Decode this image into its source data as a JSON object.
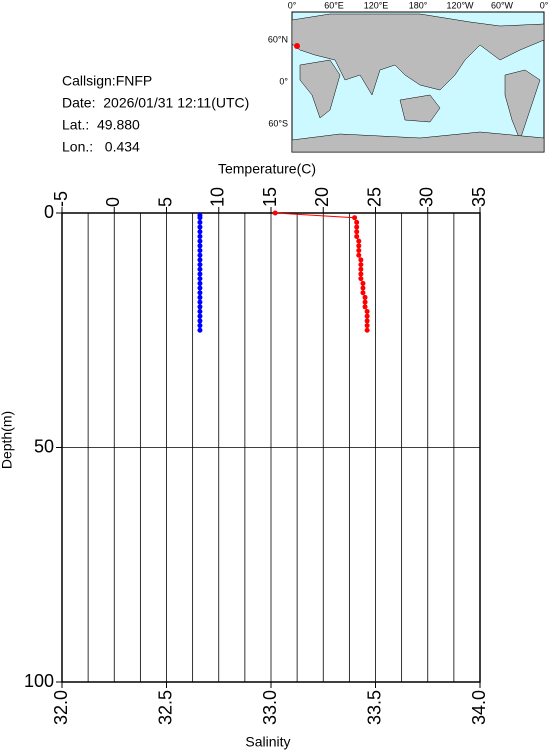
{
  "chart_data": {
    "type": "profile",
    "annotations": [
      "Callsign:FNFP",
      "Date:  2026/01/31 12:11(UTC)",
      "Lat.:  49.880",
      "Lon.:   0.434"
    ],
    "xlabel": "Salinity",
    "x2label": "Temperature(C)",
    "ylabel": "Depth(m)",
    "xlim": [
      32.0,
      34.0
    ],
    "xticks": [
      {
        "value": 32.0,
        "label": "32.0"
      },
      {
        "value": 32.5,
        "label": "32.5"
      },
      {
        "value": 33.0,
        "label": "33.0"
      },
      {
        "value": 33.5,
        "label": "33.5"
      },
      {
        "value": 34.0,
        "label": "34.0"
      }
    ],
    "x2lim": [
      -5,
      35
    ],
    "x2ticks": [
      -5,
      0,
      5,
      10,
      15,
      20,
      25,
      30,
      35
    ],
    "x2grid": [
      -2.5,
      0,
      2.5,
      5,
      7.5,
      10,
      12.5,
      15,
      17.5,
      20,
      22.5,
      25,
      27.5,
      30,
      32.5
    ],
    "ylim": [
      0,
      100
    ],
    "y_inverted": true,
    "yticks": [
      0,
      50,
      100
    ],
    "ygrid": [
      50
    ],
    "series": [
      {
        "color": "#0000ff",
        "axis": "x2",
        "x": [
          8.2,
          8.2,
          8.2,
          8.2,
          8.2,
          8.2,
          8.2,
          8.2,
          8.2,
          8.2,
          8.2,
          8.2,
          8.2,
          8.2,
          8.2,
          8.2,
          8.2,
          8.2,
          8.2,
          8.2,
          8.2,
          8.2,
          8.2,
          8.2,
          8.2,
          8.2
        ],
        "values": [
          0.5,
          1,
          2,
          3,
          4,
          5,
          6,
          7,
          8,
          9,
          10,
          11,
          12,
          13,
          14,
          15,
          16,
          17,
          18,
          19,
          20,
          21,
          22,
          23,
          24,
          25
        ]
      },
      {
        "color": "#ff0000",
        "axis": "x",
        "x": [
          33.02,
          33.4,
          33.41,
          33.41,
          33.41,
          33.41,
          33.42,
          33.42,
          33.42,
          33.42,
          33.43,
          33.43,
          33.43,
          33.43,
          33.43,
          33.44,
          33.44,
          33.44,
          33.45,
          33.45,
          33.45,
          33.46,
          33.46,
          33.46,
          33.46,
          33.46
        ],
        "values": [
          0,
          1,
          2,
          3,
          4,
          5,
          6,
          7,
          8,
          9,
          10,
          11,
          12,
          13,
          14,
          15,
          16,
          17,
          18,
          19,
          20,
          21,
          22,
          23,
          24,
          25
        ]
      }
    ]
  },
  "map": {
    "lon_labels": [
      "0°",
      "60°E",
      "120°E",
      "180°",
      "120°W",
      "60°W",
      "0°"
    ],
    "lat_labels": [
      "60°N",
      "0°",
      "60°S"
    ]
  }
}
